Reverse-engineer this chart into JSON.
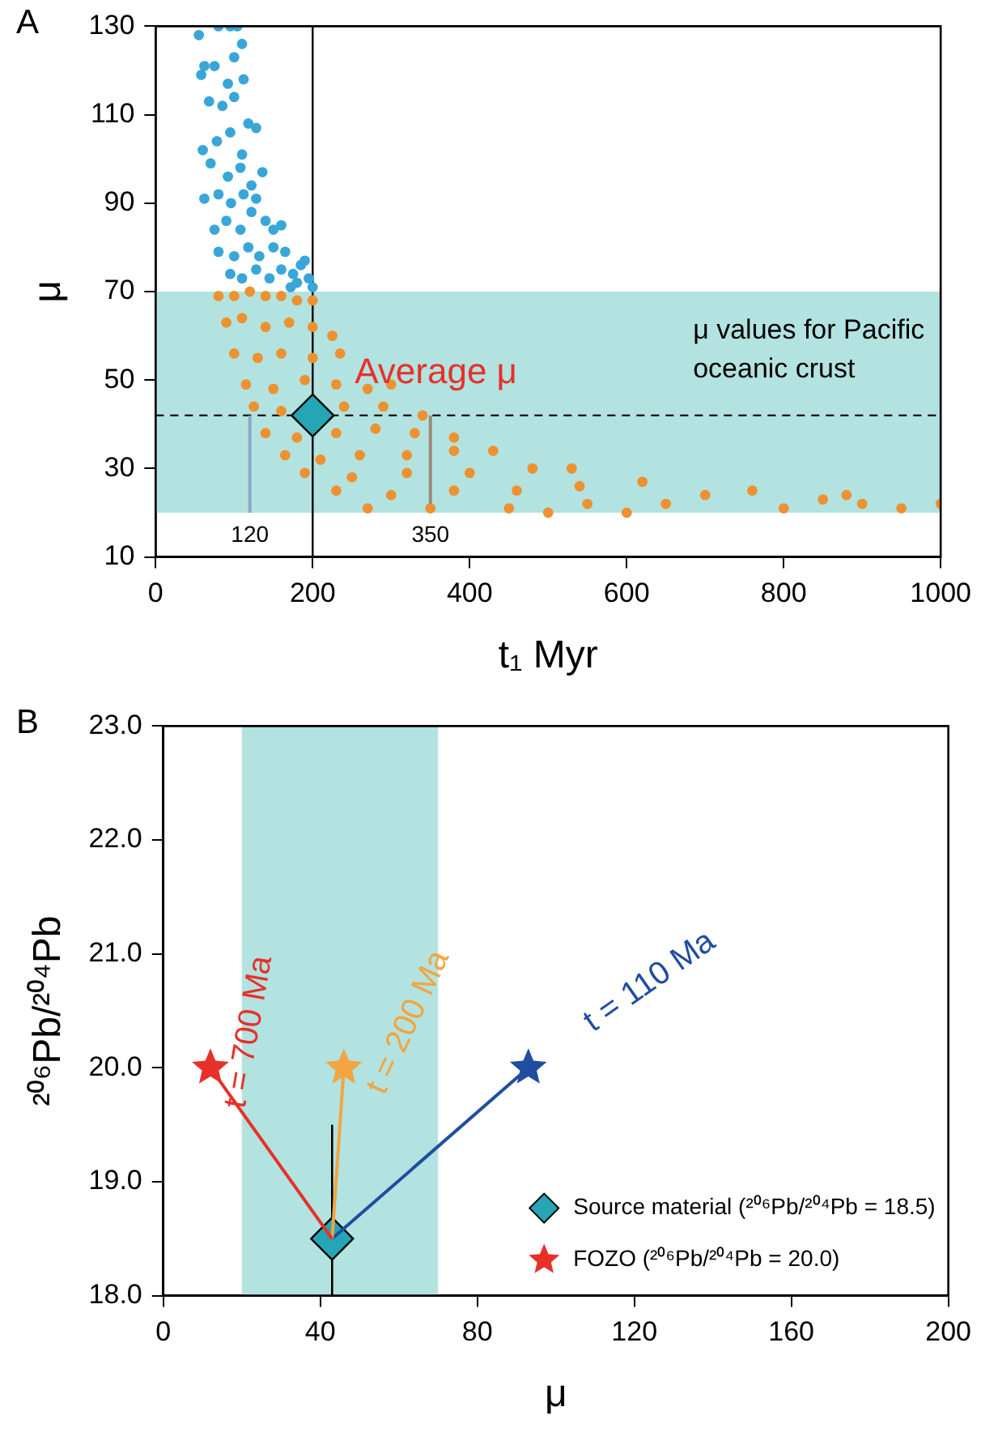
{
  "chart_data": [
    {
      "type": "scatter",
      "title": "A",
      "xlabel": "t₁ Myr",
      "ylabel": "μ",
      "xlim": [
        0,
        1000
      ],
      "ylim": [
        10,
        130
      ],
      "xticks": [
        0,
        200,
        400,
        600,
        800,
        1000
      ],
      "yticks": [
        10,
        30,
        50,
        70,
        90,
        110,
        130
      ],
      "marker": "circle",
      "bands": [
        {
          "axis": "y",
          "from": 20,
          "to": 70,
          "label": "μ values for Pacific oceanic crust",
          "color": "#b2e3e0"
        }
      ],
      "ref_lines": [
        {
          "axis": "x",
          "value": 200,
          "color": "#000000"
        },
        {
          "axis": "y",
          "value": 42,
          "color": "#000000",
          "line_style": "dashed"
        }
      ],
      "annotations": [
        {
          "text": "120",
          "x": 120,
          "y": 20
        },
        {
          "text": "350",
          "x": 350,
          "y": 20
        },
        {
          "text": "Average μ",
          "x": 200,
          "y": 42
        }
      ],
      "series": [
        {
          "color": "#3aa6d8",
          "x": [
            55,
            62,
            80,
            95,
            104,
            110,
            58,
            75,
            92,
            100,
            112,
            68,
            85,
            100,
            118,
            60,
            78,
            95,
            110,
            128,
            70,
            92,
            108,
            122,
            136,
            62,
            80,
            96,
            112,
            128,
            75,
            90,
            108,
            122,
            140,
            150,
            160,
            80,
            100,
            118,
            132,
            150,
            165,
            95,
            110,
            128,
            145,
            160,
            175,
            185,
            195,
            190,
            172,
            180,
            200
          ],
          "values": [
            128,
            121,
            130,
            130,
            130,
            126,
            119,
            121,
            117,
            123,
            118,
            113,
            112,
            114,
            108,
            102,
            104,
            106,
            101,
            107,
            99,
            96,
            98,
            94,
            97,
            91,
            92,
            90,
            92,
            91,
            84,
            86,
            84,
            88,
            86,
            84,
            85,
            79,
            78,
            80,
            78,
            80,
            79,
            74,
            73,
            75,
            73,
            75,
            74,
            76,
            73,
            77,
            71,
            72,
            71
          ]
        },
        {
          "color": "#ee9130",
          "x": [
            80,
            100,
            120,
            140,
            160,
            180,
            200,
            90,
            110,
            140,
            170,
            200,
            225,
            100,
            130,
            160,
            200,
            235,
            115,
            150,
            190,
            230,
            270,
            300,
            125,
            160,
            240,
            290,
            340,
            140,
            180,
            230,
            280,
            330,
            380,
            165,
            210,
            260,
            320,
            380,
            430,
            190,
            250,
            320,
            400,
            480,
            530,
            230,
            300,
            380,
            460,
            540,
            620,
            270,
            350,
            450,
            550,
            650,
            700,
            760,
            800,
            850,
            900,
            950,
            1000,
            880,
            600,
            500
          ],
          "values": [
            69,
            69,
            70,
            69,
            69,
            68,
            68,
            63,
            64,
            62,
            63,
            62,
            60,
            56,
            55,
            56,
            55,
            56,
            49,
            48,
            50,
            49,
            48,
            49,
            44,
            43,
            44,
            44,
            42,
            38,
            37,
            38,
            39,
            38,
            37,
            33,
            32,
            33,
            33,
            34,
            34,
            29,
            28,
            29,
            29,
            30,
            30,
            25,
            24,
            25,
            25,
            26,
            27,
            21,
            21,
            21,
            22,
            22,
            24,
            25,
            21,
            23,
            22,
            21,
            22,
            24,
            20,
            20
          ]
        },
        {
          "type": "line",
          "marker": "none",
          "color": "#8fa6c8",
          "x": [
            120,
            120
          ],
          "values": [
            20,
            42
          ]
        },
        {
          "type": "line",
          "marker": "none",
          "color": "#9a8a78",
          "x": [
            350,
            350
          ],
          "values": [
            20,
            42
          ]
        },
        {
          "marker": "diamond",
          "color": "#26a5b5",
          "x": [
            200
          ],
          "values": [
            42
          ]
        }
      ]
    },
    {
      "type": "line",
      "title": "B",
      "xlabel": "μ",
      "ylabel": "²⁰⁶Pb/²⁰⁴Pb",
      "xlim": [
        0,
        200
      ],
      "ylim": [
        18,
        23
      ],
      "xticks": [
        0,
        40,
        80,
        120,
        160,
        200
      ],
      "yticks": [
        {
          "value": 18,
          "label": "18.0"
        },
        {
          "value": 19,
          "label": "19.0"
        },
        {
          "value": 20,
          "label": "20.0"
        },
        {
          "value": 21,
          "label": "21.0"
        },
        {
          "value": 22,
          "label": "22.0"
        },
        {
          "value": 23,
          "label": "23.0"
        }
      ],
      "legend": "bottom right",
      "marker": "none",
      "bands": [
        {
          "axis": "x",
          "from": 20,
          "to": 70,
          "color": "#b2e3e0"
        }
      ],
      "annotations": [
        {
          "text": "t = 700 Ma",
          "x": 12,
          "y": 20
        },
        {
          "text": "t = 200 Ma",
          "x": 46,
          "y": 20
        },
        {
          "text": "t = 110 Ma",
          "x": 93,
          "y": 20
        }
      ],
      "series": [
        {
          "color": "#e8302a",
          "x": [
            43,
            12
          ],
          "values": [
            18.5,
            20
          ]
        },
        {
          "color": "#f2a541",
          "x": [
            43,
            46
          ],
          "values": [
            18.5,
            20
          ]
        },
        {
          "color": "#1f4ea0",
          "x": [
            43,
            93
          ],
          "values": [
            18.5,
            20
          ]
        },
        {
          "type": "scatter",
          "marker": "diamond",
          "name": "Source material (²⁰⁶Pb/²⁰⁴Pb = 18.5)",
          "color": "#26a5b5",
          "x": [
            43
          ],
          "values": [
            18.5
          ],
          "errors": [
            [
              18.0,
              19.5
            ]
          ]
        },
        {
          "type": "scatter",
          "marker": "star",
          "name": "FOZO (²⁰⁶Pb/²⁰⁴Pb = 20.0)",
          "color": "#e8302a",
          "colors": [
            "#e8302a",
            "#f2a541",
            "#1f4ea0"
          ],
          "x": [
            12,
            46,
            93
          ],
          "values": [
            20,
            20,
            20
          ]
        }
      ]
    }
  ]
}
